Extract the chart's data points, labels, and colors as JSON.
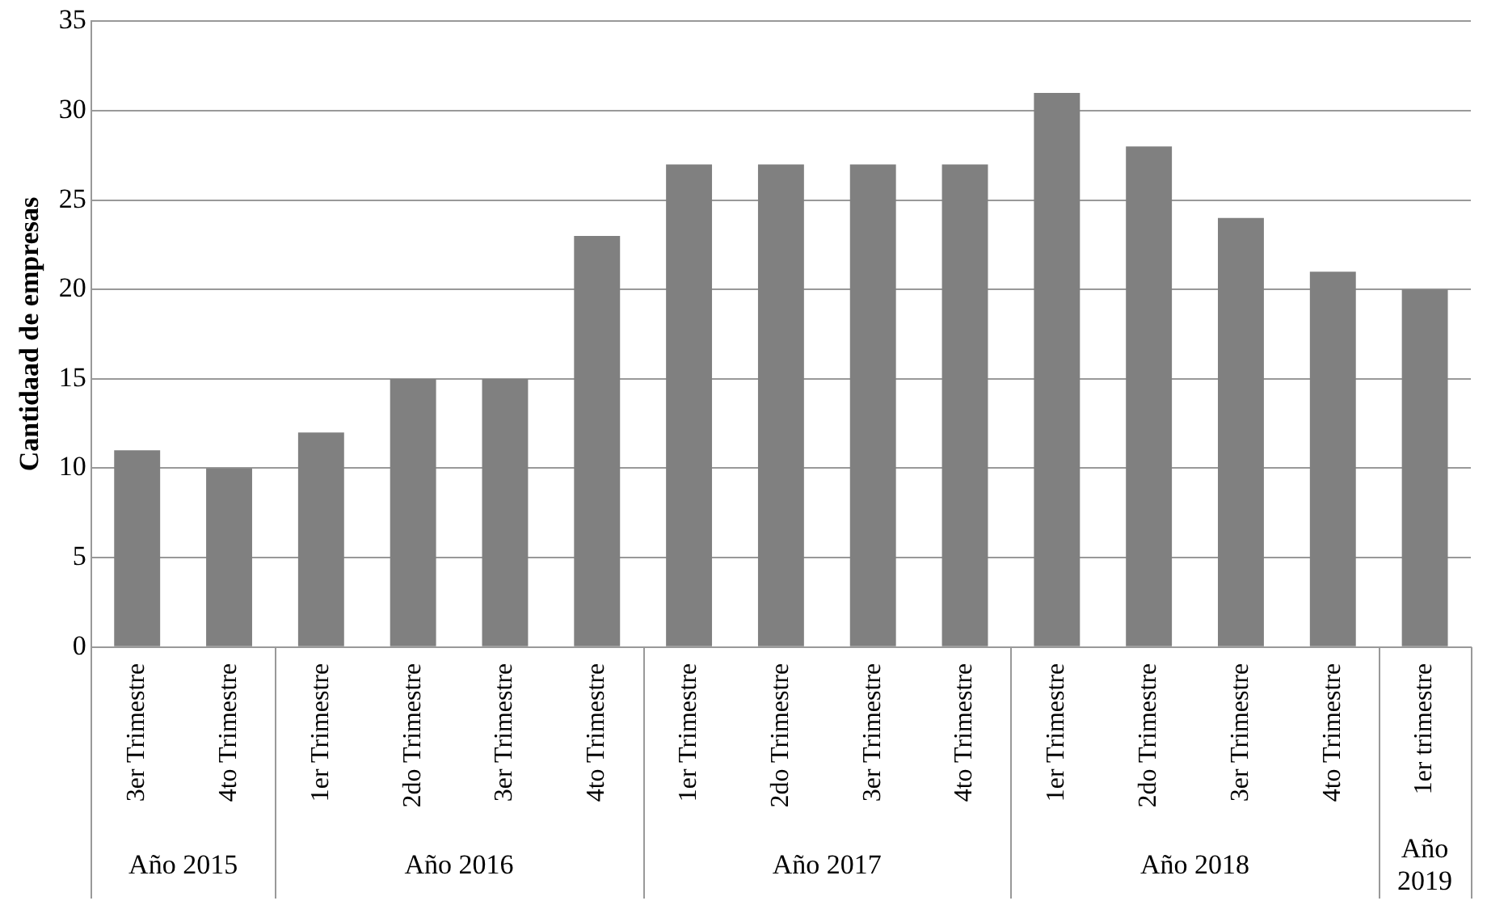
{
  "chart_data": {
    "type": "bar",
    "ylabel": "Cantidaad de empresas",
    "categories": [
      "3er Trimestre",
      "4to Trimestre",
      "1er Trimestre",
      "2do Trimestre",
      "3er Trimestre",
      "4to Trimestre",
      "1er Trimestre",
      "2do Trimestre",
      "3er Trimestre",
      "4to Trimestre",
      "1er Trimestre",
      "2do Trimestre",
      "3er Trimestre",
      "4to Trimestre",
      "1er trimestre"
    ],
    "values": [
      11,
      10,
      12,
      15,
      15,
      23,
      27,
      27,
      27,
      27,
      31,
      28,
      24,
      21,
      20
    ],
    "color": "#808080",
    "ylim": [
      0,
      35
    ],
    "yticks": [
      0,
      5,
      10,
      15,
      20,
      25,
      30,
      35
    ],
    "grid": "y",
    "legend": false,
    "annotations": [
      "Año 2015",
      "Año 2016",
      "Año 2017",
      "Año 2018",
      "Año 2019"
    ]
  }
}
